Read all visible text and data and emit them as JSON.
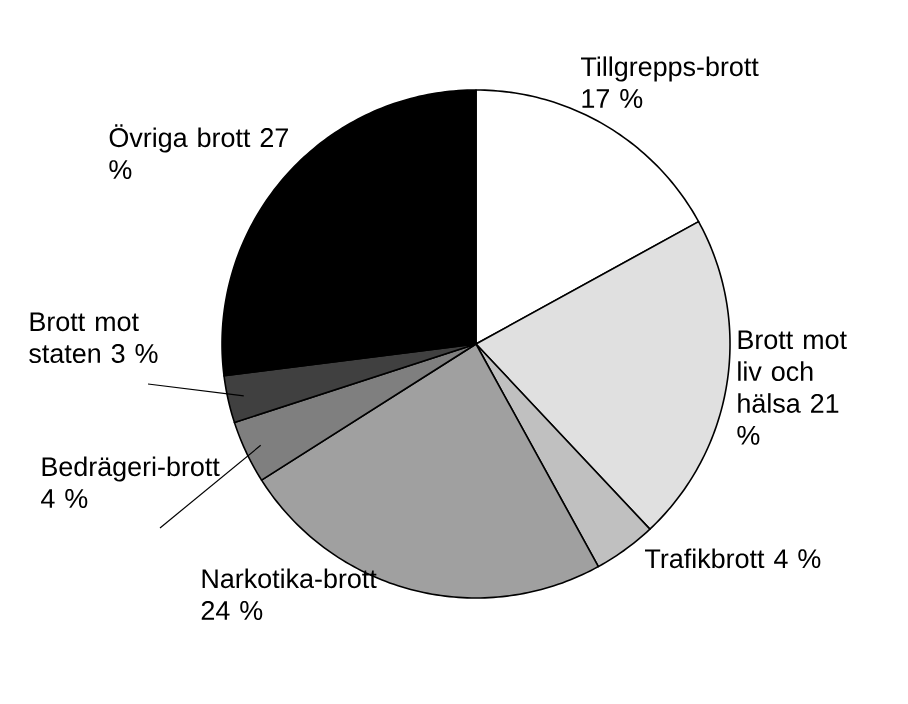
{
  "chart_data": {
    "type": "pie",
    "categories": [
      "Tillgrepps-brott",
      "Brott mot liv och hälsa",
      "Trafikbrott",
      "Narkotika-brott",
      "Bedrägeri-brott",
      "Brott mot staten",
      "Övriga brott"
    ],
    "values": [
      17,
      21,
      4,
      24,
      4,
      3,
      27
    ],
    "value_labels": [
      "17 %",
      "21 %",
      "4 %",
      "24 %",
      "4 %",
      "3 %",
      "27 %"
    ],
    "colors": [
      "#ffffff",
      "#e0e0e0",
      "#c0c0c0",
      "#a0a0a0",
      "#7f7f7f",
      "#404040",
      "#000000"
    ]
  }
}
